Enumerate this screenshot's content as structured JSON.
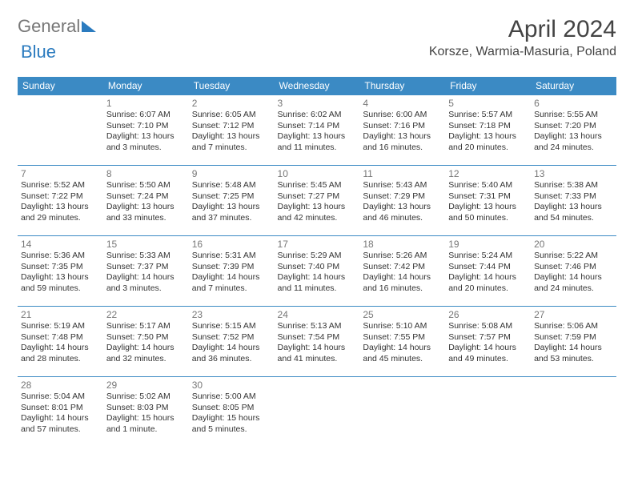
{
  "logo": {
    "general": "General",
    "blue": "Blue"
  },
  "title": "April 2024",
  "location": "Korsze, Warmia-Masuria, Poland",
  "colors": {
    "header_bg": "#3b8ac4",
    "header_text": "#ffffff",
    "border": "#3b8ac4",
    "daynum": "#777777",
    "text": "#333333",
    "logo_gray": "#777777",
    "logo_blue": "#2b7bbf"
  },
  "day_headers": [
    "Sunday",
    "Monday",
    "Tuesday",
    "Wednesday",
    "Thursday",
    "Friday",
    "Saturday"
  ],
  "weeks": [
    [
      null,
      {
        "n": "1",
        "sunrise": "6:07 AM",
        "sunset": "7:10 PM",
        "dh": "13",
        "dm": "3 minutes"
      },
      {
        "n": "2",
        "sunrise": "6:05 AM",
        "sunset": "7:12 PM",
        "dh": "13",
        "dm": "7 minutes"
      },
      {
        "n": "3",
        "sunrise": "6:02 AM",
        "sunset": "7:14 PM",
        "dh": "13",
        "dm": "11 minutes"
      },
      {
        "n": "4",
        "sunrise": "6:00 AM",
        "sunset": "7:16 PM",
        "dh": "13",
        "dm": "16 minutes"
      },
      {
        "n": "5",
        "sunrise": "5:57 AM",
        "sunset": "7:18 PM",
        "dh": "13",
        "dm": "20 minutes"
      },
      {
        "n": "6",
        "sunrise": "5:55 AM",
        "sunset": "7:20 PM",
        "dh": "13",
        "dm": "24 minutes"
      }
    ],
    [
      {
        "n": "7",
        "sunrise": "5:52 AM",
        "sunset": "7:22 PM",
        "dh": "13",
        "dm": "29 minutes"
      },
      {
        "n": "8",
        "sunrise": "5:50 AM",
        "sunset": "7:24 PM",
        "dh": "13",
        "dm": "33 minutes"
      },
      {
        "n": "9",
        "sunrise": "5:48 AM",
        "sunset": "7:25 PM",
        "dh": "13",
        "dm": "37 minutes"
      },
      {
        "n": "10",
        "sunrise": "5:45 AM",
        "sunset": "7:27 PM",
        "dh": "13",
        "dm": "42 minutes"
      },
      {
        "n": "11",
        "sunrise": "5:43 AM",
        "sunset": "7:29 PM",
        "dh": "13",
        "dm": "46 minutes"
      },
      {
        "n": "12",
        "sunrise": "5:40 AM",
        "sunset": "7:31 PM",
        "dh": "13",
        "dm": "50 minutes"
      },
      {
        "n": "13",
        "sunrise": "5:38 AM",
        "sunset": "7:33 PM",
        "dh": "13",
        "dm": "54 minutes"
      }
    ],
    [
      {
        "n": "14",
        "sunrise": "5:36 AM",
        "sunset": "7:35 PM",
        "dh": "13",
        "dm": "59 minutes"
      },
      {
        "n": "15",
        "sunrise": "5:33 AM",
        "sunset": "7:37 PM",
        "dh": "14",
        "dm": "3 minutes"
      },
      {
        "n": "16",
        "sunrise": "5:31 AM",
        "sunset": "7:39 PM",
        "dh": "14",
        "dm": "7 minutes"
      },
      {
        "n": "17",
        "sunrise": "5:29 AM",
        "sunset": "7:40 PM",
        "dh": "14",
        "dm": "11 minutes"
      },
      {
        "n": "18",
        "sunrise": "5:26 AM",
        "sunset": "7:42 PM",
        "dh": "14",
        "dm": "16 minutes"
      },
      {
        "n": "19",
        "sunrise": "5:24 AM",
        "sunset": "7:44 PM",
        "dh": "14",
        "dm": "20 minutes"
      },
      {
        "n": "20",
        "sunrise": "5:22 AM",
        "sunset": "7:46 PM",
        "dh": "14",
        "dm": "24 minutes"
      }
    ],
    [
      {
        "n": "21",
        "sunrise": "5:19 AM",
        "sunset": "7:48 PM",
        "dh": "14",
        "dm": "28 minutes"
      },
      {
        "n": "22",
        "sunrise": "5:17 AM",
        "sunset": "7:50 PM",
        "dh": "14",
        "dm": "32 minutes"
      },
      {
        "n": "23",
        "sunrise": "5:15 AM",
        "sunset": "7:52 PM",
        "dh": "14",
        "dm": "36 minutes"
      },
      {
        "n": "24",
        "sunrise": "5:13 AM",
        "sunset": "7:54 PM",
        "dh": "14",
        "dm": "41 minutes"
      },
      {
        "n": "25",
        "sunrise": "5:10 AM",
        "sunset": "7:55 PM",
        "dh": "14",
        "dm": "45 minutes"
      },
      {
        "n": "26",
        "sunrise": "5:08 AM",
        "sunset": "7:57 PM",
        "dh": "14",
        "dm": "49 minutes"
      },
      {
        "n": "27",
        "sunrise": "5:06 AM",
        "sunset": "7:59 PM",
        "dh": "14",
        "dm": "53 minutes"
      }
    ],
    [
      {
        "n": "28",
        "sunrise": "5:04 AM",
        "sunset": "8:01 PM",
        "dh": "14",
        "dm": "57 minutes"
      },
      {
        "n": "29",
        "sunrise": "5:02 AM",
        "sunset": "8:03 PM",
        "dh": "15",
        "dm": "1 minute"
      },
      {
        "n": "30",
        "sunrise": "5:00 AM",
        "sunset": "8:05 PM",
        "dh": "15",
        "dm": "5 minutes"
      },
      null,
      null,
      null,
      null
    ]
  ]
}
